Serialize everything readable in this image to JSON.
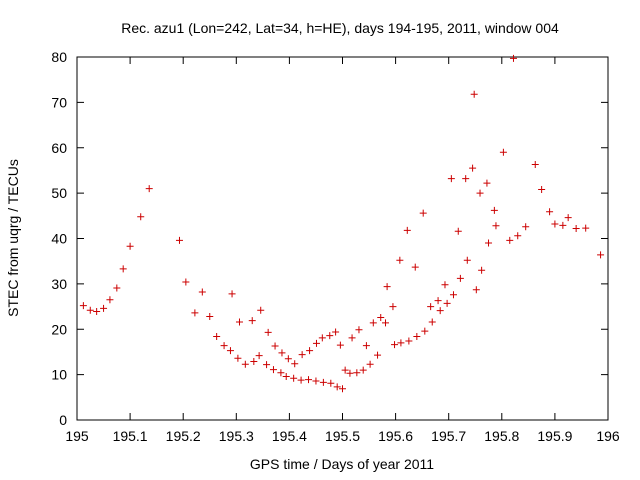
{
  "chart_data": {
    "type": "scatter",
    "title": "Rec. azu1 (Lon=242, Lat=34, h=HE), days 194-195, 2011, window 004",
    "xlabel": "GPS time / Days of year 2011",
    "ylabel": "STEC from uqrg / TECUs",
    "xlim": [
      195,
      196
    ],
    "ylim": [
      0,
      80
    ],
    "xticks": [
      195,
      195.1,
      195.2,
      195.3,
      195.4,
      195.5,
      195.6,
      195.7,
      195.8,
      195.9,
      196
    ],
    "xtick_labels": [
      "195",
      "195.1",
      "195.2",
      "195.3",
      "195.4",
      "195.5",
      "195.6",
      "195.7",
      "195.8",
      "195.9",
      "196"
    ],
    "yticks": [
      0,
      10,
      20,
      30,
      40,
      50,
      60,
      70,
      80
    ],
    "ytick_labels": [
      "0",
      "10",
      "20",
      "30",
      "40",
      "50",
      "60",
      "70",
      "80"
    ],
    "marker": "+",
    "color": "#cc0000",
    "grid": false,
    "series": [
      {
        "name": "STEC",
        "points": [
          [
            195.012,
            25.2
          ],
          [
            195.025,
            24.2
          ],
          [
            195.037,
            23.9
          ],
          [
            195.05,
            24.6
          ],
          [
            195.062,
            26.5
          ],
          [
            195.075,
            29.1
          ],
          [
            195.087,
            33.3
          ],
          [
            195.1,
            38.3
          ],
          [
            195.12,
            44.8
          ],
          [
            195.136,
            51.0
          ],
          [
            195.193,
            39.6
          ],
          [
            195.205,
            30.4
          ],
          [
            195.222,
            23.6
          ],
          [
            195.236,
            28.2
          ],
          [
            195.25,
            22.8
          ],
          [
            195.263,
            18.4
          ],
          [
            195.277,
            16.4
          ],
          [
            195.289,
            15.3
          ],
          [
            195.292,
            27.8
          ],
          [
            195.303,
            13.6
          ],
          [
            195.306,
            21.6
          ],
          [
            195.317,
            12.3
          ],
          [
            195.33,
            21.9
          ],
          [
            195.333,
            12.9
          ],
          [
            195.343,
            14.2
          ],
          [
            195.346,
            24.2
          ],
          [
            195.357,
            12.2
          ],
          [
            195.36,
            19.3
          ],
          [
            195.37,
            11.1
          ],
          [
            195.373,
            16.3
          ],
          [
            195.384,
            10.4
          ],
          [
            195.386,
            14.8
          ],
          [
            195.394,
            9.6
          ],
          [
            195.398,
            13.5
          ],
          [
            195.408,
            9.2
          ],
          [
            195.41,
            12.4
          ],
          [
            195.422,
            8.8
          ],
          [
            195.424,
            14.4
          ],
          [
            195.436,
            8.9
          ],
          [
            195.438,
            15.3
          ],
          [
            195.45,
            8.6
          ],
          [
            195.451,
            16.9
          ],
          [
            195.462,
            18.1
          ],
          [
            195.464,
            8.3
          ],
          [
            195.476,
            18.6
          ],
          [
            195.478,
            8.1
          ],
          [
            195.487,
            19.4
          ],
          [
            195.49,
            7.3
          ],
          [
            195.496,
            16.5
          ],
          [
            195.5,
            6.9
          ],
          [
            195.505,
            11.0
          ],
          [
            195.514,
            10.3
          ],
          [
            195.518,
            18.1
          ],
          [
            195.527,
            10.4
          ],
          [
            195.531,
            19.9
          ],
          [
            195.539,
            11.0
          ],
          [
            195.545,
            16.4
          ],
          [
            195.552,
            12.3
          ],
          [
            195.558,
            21.4
          ],
          [
            195.566,
            14.3
          ],
          [
            195.572,
            22.6
          ],
          [
            195.581,
            21.4
          ],
          [
            195.584,
            29.4
          ],
          [
            195.595,
            25.0
          ],
          [
            195.598,
            16.6
          ],
          [
            195.608,
            35.2
          ],
          [
            195.61,
            17.0
          ],
          [
            195.622,
            41.8
          ],
          [
            195.625,
            17.4
          ],
          [
            195.637,
            33.7
          ],
          [
            195.64,
            18.4
          ],
          [
            195.652,
            45.6
          ],
          [
            195.655,
            19.6
          ],
          [
            195.666,
            25.0
          ],
          [
            195.669,
            21.6
          ],
          [
            195.68,
            26.3
          ],
          [
            195.684,
            24.1
          ],
          [
            195.693,
            29.8
          ],
          [
            195.697,
            25.7
          ],
          [
            195.705,
            53.2
          ],
          [
            195.709,
            27.6
          ],
          [
            195.718,
            41.6
          ],
          [
            195.722,
            31.2
          ],
          [
            195.732,
            53.2
          ],
          [
            195.735,
            35.2
          ],
          [
            195.745,
            55.5
          ],
          [
            195.748,
            71.8
          ],
          [
            195.752,
            28.7
          ],
          [
            195.759,
            50.0
          ],
          [
            195.762,
            33.0
          ],
          [
            195.772,
            52.2
          ],
          [
            195.775,
            39.0
          ],
          [
            195.786,
            46.2
          ],
          [
            195.789,
            42.8
          ],
          [
            195.803,
            59.0
          ],
          [
            195.815,
            39.6
          ],
          [
            195.822,
            79.7
          ],
          [
            195.83,
            40.6
          ],
          [
            195.845,
            42.6
          ],
          [
            195.863,
            56.3
          ],
          [
            195.875,
            50.8
          ],
          [
            195.89,
            45.9
          ],
          [
            195.9,
            43.2
          ],
          [
            195.915,
            42.9
          ],
          [
            195.925,
            44.6
          ],
          [
            195.94,
            42.2
          ],
          [
            195.958,
            42.3
          ],
          [
            195.986,
            36.4
          ]
        ]
      }
    ]
  }
}
